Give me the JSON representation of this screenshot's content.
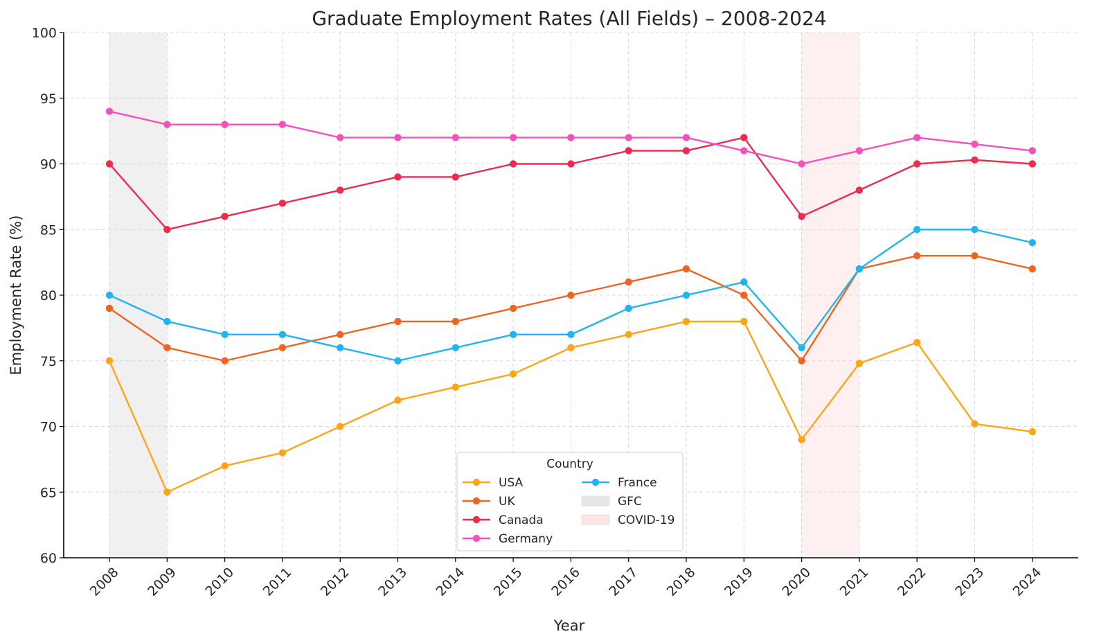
{
  "chart_data": {
    "type": "line",
    "title": "Graduate Employment Rates (All Fields) – 2008-2024",
    "xlabel": "Year",
    "ylabel": "Employment Rate (%)",
    "x": [
      "2008",
      "2009",
      "2010",
      "2011",
      "2012",
      "2013",
      "2014",
      "2015",
      "2016",
      "2017",
      "2018",
      "2019",
      "2020",
      "2021",
      "2022",
      "2023",
      "2024"
    ],
    "ylim": [
      60,
      100
    ],
    "yticks": [
      "60",
      "65",
      "70",
      "75",
      "80",
      "85",
      "90",
      "95",
      "100"
    ],
    "grid": true,
    "legend": {
      "title": "Country",
      "placement": "bottom-center",
      "columns": 2
    },
    "series": [
      {
        "name": "USA",
        "color": "#fba617",
        "values": [
          75,
          65,
          67,
          68,
          70,
          72,
          73,
          74,
          76,
          77,
          78,
          78,
          69,
          74.8,
          76.4,
          70.2,
          69.6
        ]
      },
      {
        "name": "UK",
        "color": "#ef6421",
        "values": [
          79,
          76,
          75,
          76,
          77,
          78,
          78,
          79,
          80,
          81,
          82,
          80,
          75,
          82,
          83,
          83,
          82
        ]
      },
      {
        "name": "Canada",
        "color": "#ee2a4f",
        "values": [
          90,
          85,
          86,
          87,
          88,
          89,
          89,
          90,
          90,
          91,
          91,
          92,
          86,
          88,
          90,
          90.3,
          90
        ]
      },
      {
        "name": "Germany",
        "color": "#f451be",
        "values": [
          94,
          93,
          93,
          93,
          92,
          92,
          92,
          92,
          92,
          92,
          92,
          91,
          90,
          91,
          92,
          91.5,
          91
        ]
      },
      {
        "name": "France",
        "color": "#22b4f0",
        "values": [
          80,
          78,
          77,
          77,
          76,
          75,
          76,
          77,
          77,
          79,
          80,
          81,
          76,
          82,
          85,
          85,
          84
        ]
      }
    ],
    "shaded_regions": [
      {
        "name": "GFC",
        "x_start": "2008",
        "x_end": "2009",
        "color": "#e6e6e6"
      },
      {
        "name": "COVID-19",
        "x_start": "2020",
        "x_end": "2021",
        "color": "#fde6e6"
      }
    ]
  }
}
